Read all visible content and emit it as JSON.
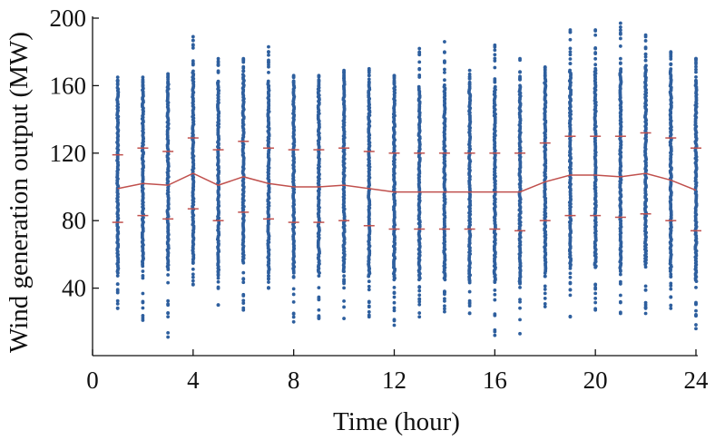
{
  "chart_data": {
    "type": "scatter",
    "title": "",
    "xlabel": "Time (hour)",
    "ylabel": "Wind generation output (MW)",
    "xlim": [
      0,
      24
    ],
    "ylim": [
      0,
      200
    ],
    "xticks": [
      0,
      4,
      8,
      12,
      16,
      20,
      24
    ],
    "yticks": [
      40,
      80,
      120,
      160,
      200
    ],
    "grid": false,
    "colors": {
      "points": "#2e5f9e",
      "mean_line": "#c0504d",
      "bounds": "#c0504d",
      "axis": "#111111"
    },
    "hours": [
      1,
      2,
      3,
      4,
      5,
      6,
      7,
      8,
      9,
      10,
      11,
      12,
      13,
      14,
      15,
      16,
      17,
      18,
      19,
      20,
      21,
      22,
      23,
      24
    ],
    "series": [
      {
        "values_desc": "scatter samples per hour",
        "min": [
          28,
          21,
          11,
          42,
          30,
          27,
          40,
          20,
          22,
          22,
          23,
          18,
          23,
          26,
          25,
          12,
          13,
          29,
          23,
          27,
          25,
          25,
          28,
          16
        ],
        "max": [
          165,
          165,
          167,
          189,
          176,
          176,
          183,
          166,
          166,
          169,
          170,
          166,
          182,
          186,
          169,
          184,
          176,
          171,
          193,
          193,
          197,
          190,
          180,
          176
        ]
      },
      {
        "name": "",
        "type": "line",
        "mean": [
          99,
          102,
          101,
          108,
          101,
          106,
          102,
          100,
          100,
          101,
          99,
          97,
          97,
          97,
          97,
          97,
          97,
          103,
          107,
          107,
          106,
          108,
          104,
          98
        ]
      },
      {
        "name": "",
        "type": "bounds",
        "upper": [
          119,
          123,
          121,
          129,
          122,
          127,
          123,
          122,
          122,
          123,
          121,
          120,
          120,
          120,
          120,
          120,
          120,
          126,
          130,
          130,
          130,
          132,
          129,
          123
        ],
        "lower": [
          79,
          83,
          81,
          87,
          80,
          85,
          81,
          79,
          79,
          80,
          77,
          75,
          75,
          75,
          75,
          75,
          74,
          80,
          83,
          83,
          82,
          84,
          80,
          74
        ]
      }
    ]
  }
}
